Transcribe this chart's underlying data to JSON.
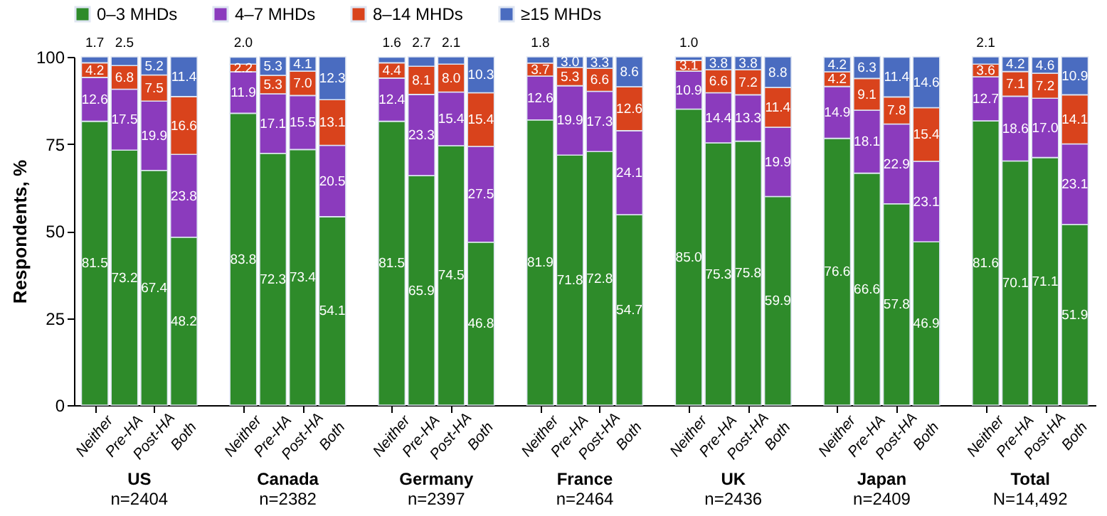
{
  "chart_data": {
    "type": "bar",
    "stacked": true,
    "ylabel": "Respondents, %",
    "categories": [
      "Neither",
      "Pre-HA",
      "Post-HA",
      "Both",
      "Neither",
      "Pre-HA",
      "Post-HA",
      "Both",
      "Neither",
      "Pre-HA",
      "Post-HA",
      "Both",
      "Neither",
      "Pre-HA",
      "Post-HA",
      "Both",
      "Neither",
      "Pre-HA",
      "Post-HA",
      "Both",
      "Neither",
      "Pre-HA",
      "Post-HA",
      "Both",
      "Neither",
      "Pre-HA",
      "Post-HA",
      "Both"
    ],
    "series": [
      {
        "name": "0–3 MHDs",
        "color": "#2e8b2a",
        "values": [
          81.5,
          73.2,
          67.4,
          48.2,
          83.8,
          72.3,
          73.4,
          54.1,
          81.5,
          65.9,
          74.5,
          46.8,
          81.9,
          71.8,
          72.8,
          54.7,
          85.0,
          75.3,
          75.8,
          59.9,
          76.6,
          66.6,
          57.8,
          46.9,
          81.6,
          70.1,
          71.1,
          51.9
        ],
        "value_labels": [
          "81.5",
          "73.2",
          "67.4",
          "48.2",
          "83.8",
          "72.3",
          "73.4",
          "54.1",
          "81.5",
          "65.9",
          "74.5",
          "46.8",
          "81.9",
          "71.8",
          "72.8",
          "54.7",
          "85.0",
          "75.3",
          "75.8",
          "59.9",
          "76.6",
          "66.6",
          "57.8",
          "46.9",
          "81.6",
          "70.1",
          "71.1",
          "51.9"
        ]
      },
      {
        "name": "4–7 MHDs",
        "color": "#8b3bbd",
        "values": [
          12.6,
          17.5,
          19.9,
          23.8,
          11.9,
          17.1,
          15.5,
          20.5,
          12.4,
          23.3,
          15.4,
          27.5,
          12.6,
          19.9,
          17.3,
          24.1,
          10.9,
          14.4,
          13.3,
          19.9,
          14.9,
          18.1,
          22.9,
          23.1,
          12.7,
          18.6,
          17.0,
          23.1
        ],
        "value_labels": [
          "12.6",
          "17.5",
          "19.9",
          "23.8",
          "11.9",
          "17.1",
          "15.5",
          "20.5",
          "12.4",
          "23.3",
          "15.4",
          "27.5",
          "12.6",
          "19.9",
          "17.3",
          "24.1",
          "10.9",
          "14.4",
          "13.3",
          "19.9",
          "14.9",
          "18.1",
          "22.9",
          "23.1",
          "12.7",
          "18.6",
          "17.0",
          "23.1"
        ]
      },
      {
        "name": "8–14 MHDs",
        "color": "#d9431c",
        "values": [
          4.2,
          6.8,
          7.5,
          16.6,
          2.2,
          5.3,
          7.0,
          13.1,
          4.4,
          8.1,
          8.0,
          15.4,
          3.7,
          5.3,
          6.6,
          12.6,
          3.1,
          6.6,
          7.2,
          11.4,
          4.2,
          9.1,
          7.8,
          15.4,
          3.6,
          7.1,
          7.2,
          14.1
        ],
        "value_labels": [
          "4.2",
          "6.8",
          "7.5",
          "16.6",
          "2.2",
          "5.3",
          "7.0",
          "13.1",
          "4.4",
          "8.1",
          "8.0",
          "15.4",
          "3.7",
          "5.3",
          "6.6",
          "12.6",
          "3.1",
          "6.6",
          "7.2",
          "11.4",
          "4.2",
          "9.1",
          "7.8",
          "15.4",
          "3.6",
          "7.1",
          "7.2",
          "14.1"
        ]
      },
      {
        "name": "≥15 MHDs",
        "color": "#4a6cc0",
        "values": [
          1.7,
          2.5,
          5.2,
          11.4,
          2.0,
          5.3,
          4.1,
          12.3,
          1.6,
          2.7,
          2.1,
          10.3,
          1.8,
          3.0,
          3.3,
          8.6,
          1.0,
          3.8,
          3.8,
          8.8,
          4.2,
          6.3,
          11.4,
          14.6,
          2.1,
          4.2,
          4.6,
          10.9
        ],
        "value_labels": [
          "1.7",
          "2.5",
          "5.2",
          "11.4",
          "2.0",
          "5.3",
          "4.1",
          "12.3",
          "1.6",
          "2.7",
          "2.1",
          "10.3",
          "1.8",
          "3.0",
          "3.3",
          "8.6",
          "1.0",
          "3.8",
          "3.8",
          "8.8",
          "4.2",
          "6.3",
          "11.4",
          "14.6",
          "2.1",
          "4.2",
          "4.6",
          "10.9"
        ]
      }
    ],
    "ylim": [
      0,
      100
    ],
    "yticks": [
      0,
      25,
      50,
      75,
      100
    ],
    "grid": false,
    "legend": "top",
    "annotations": [
      "US\nn=2404",
      "Canada\nn=2382",
      "Germany\nn=2397",
      "France\nn=2464",
      "UK\nn=2436",
      "Japan\nn=2409",
      "Total\nN=14,492"
    ]
  }
}
